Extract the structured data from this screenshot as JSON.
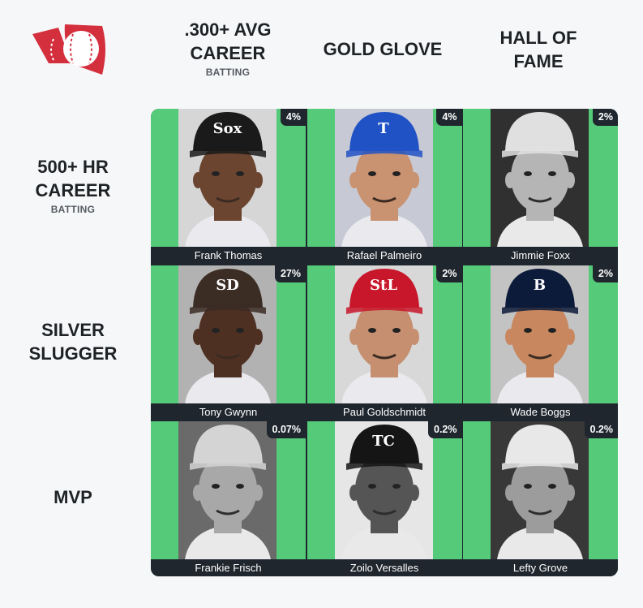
{
  "columns": [
    {
      "title": ".300+ AVG CAREER",
      "subtitle": "BATTING"
    },
    {
      "title": "GOLD GLOVE",
      "subtitle": ""
    },
    {
      "title": "HALL OF FAME",
      "subtitle": ""
    }
  ],
  "rows": [
    {
      "title": "500+ HR CAREER",
      "subtitle": "BATTING"
    },
    {
      "title": "SILVER SLUGGER",
      "subtitle": ""
    },
    {
      "title": "MVP",
      "subtitle": ""
    }
  ],
  "cells": [
    {
      "name": "Frank Thomas",
      "pct": "4%",
      "cap": "#1a1a1a",
      "logo": "Sox",
      "skin": "#6b4530",
      "bg": "#d6d6d6",
      "bw": false
    },
    {
      "name": "Rafael Palmeiro",
      "pct": "4%",
      "cap": "#2152c5",
      "logo": "T",
      "skin": "#c99270",
      "bg": "#c7c9d4",
      "bw": false
    },
    {
      "name": "Jimmie Foxx",
      "pct": "2%",
      "cap": "#e0e0e0",
      "logo": "",
      "skin": "#b5b5b5",
      "bg": "#303030",
      "bw": true
    },
    {
      "name": "Tony Gwynn",
      "pct": "27%",
      "cap": "#3b2c24",
      "logo": "SD",
      "skin": "#4e3023",
      "bg": "#b2b2b2",
      "bw": false
    },
    {
      "name": "Paul Goldschmidt",
      "pct": "2%",
      "cap": "#c8162a",
      "logo": "StL",
      "skin": "#c58f70",
      "bg": "#d8d8d8",
      "bw": false
    },
    {
      "name": "Wade Boggs",
      "pct": "2%",
      "cap": "#0d1b3a",
      "logo": "B",
      "skin": "#c8875f",
      "bg": "#c3c3c3",
      "bw": false
    },
    {
      "name": "Frankie Frisch",
      "pct": "0.07%",
      "cap": "#d4d4d4",
      "logo": "",
      "skin": "#a8a8a8",
      "bg": "#6a6a6a",
      "bw": true
    },
    {
      "name": "Zoilo Versalles",
      "pct": "0.2%",
      "cap": "#151515",
      "logo": "TC",
      "skin": "#555555",
      "bg": "#e6e6e6",
      "bw": true
    },
    {
      "name": "Lefty Grove",
      "pct": "0.2%",
      "cap": "#e8e8e8",
      "logo": "",
      "skin": "#9c9c9c",
      "bg": "#383838",
      "bw": true
    }
  ],
  "colors": {
    "green": "#55cb7a",
    "dark": "#1f262e",
    "logo_red": "#d42f3d"
  }
}
